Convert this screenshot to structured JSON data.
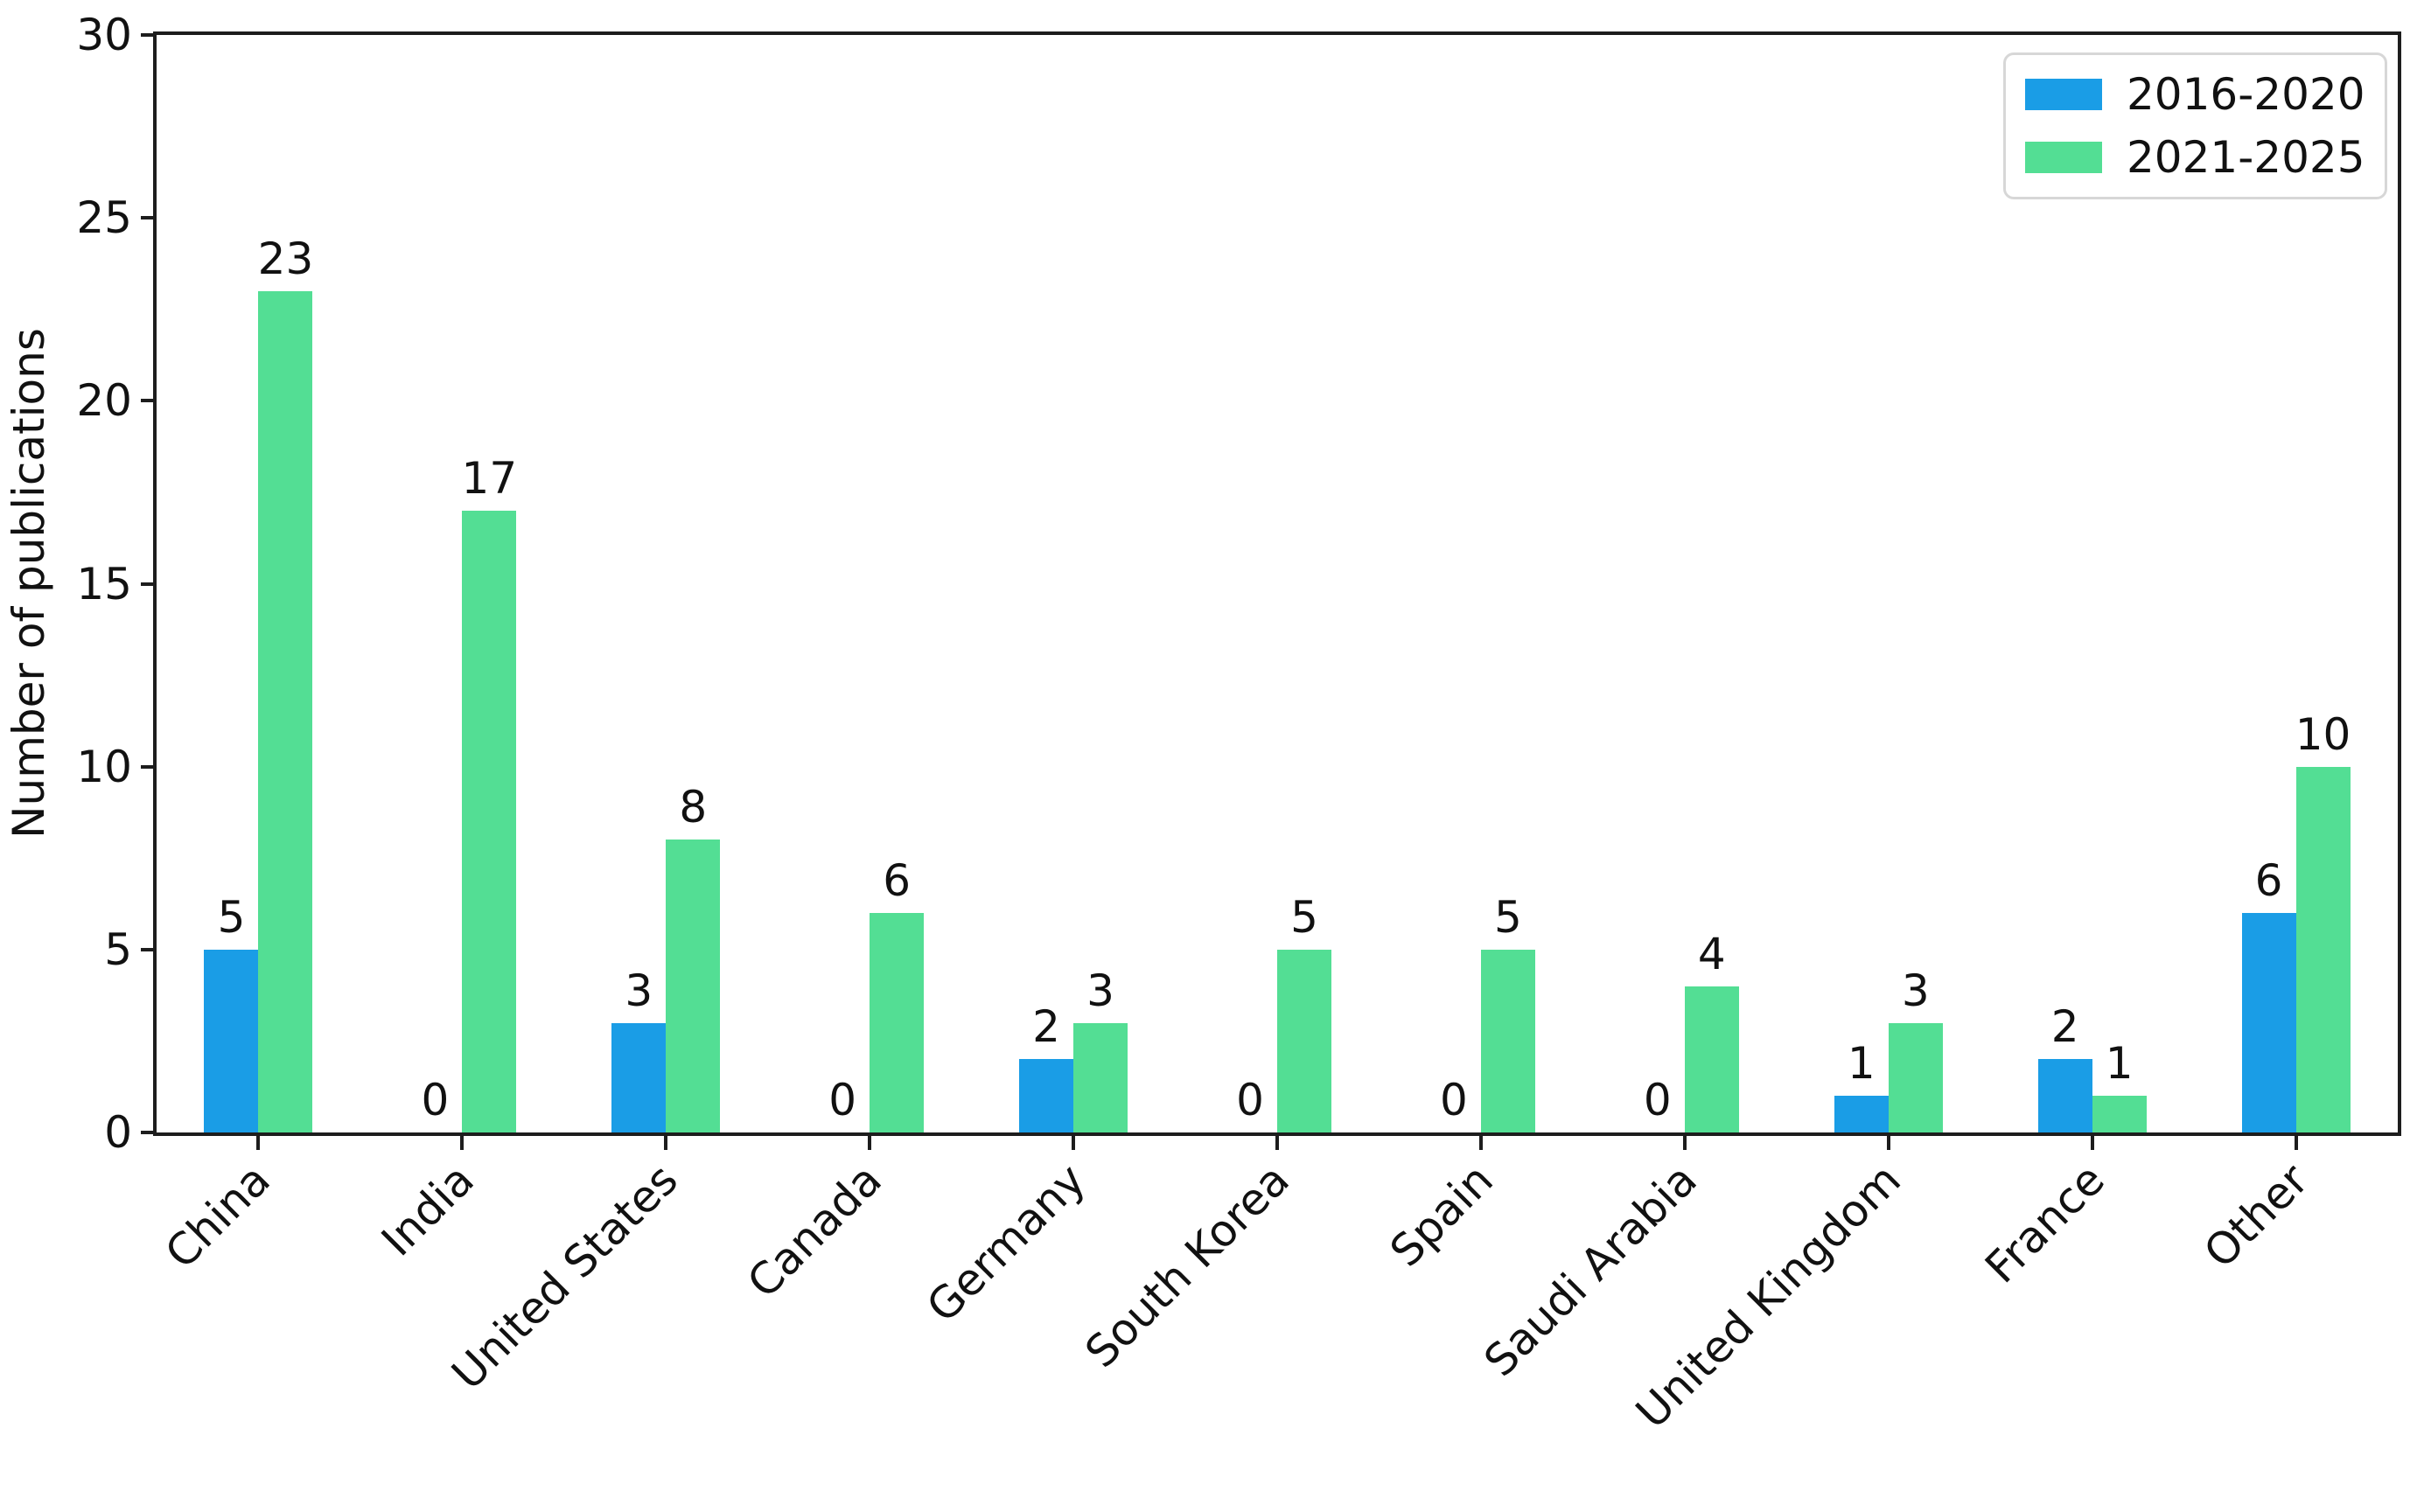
{
  "chart_data": {
    "type": "bar",
    "title": "",
    "xlabel": "",
    "ylabel": "Number of publications",
    "ylim": [
      0,
      30
    ],
    "yticks": [
      0,
      5,
      10,
      15,
      20,
      25,
      30
    ],
    "grid": false,
    "bar_value_labels": true,
    "legend_position": "upper right",
    "frame": "full-box",
    "categories": [
      "China",
      "India",
      "United States",
      "Canada",
      "Germany",
      "South Korea",
      "Spain",
      "Saudi Arabia",
      "United Kingdom",
      "France",
      "Other"
    ],
    "series": [
      {
        "name": "2016-2020",
        "color": "#1a9de6",
        "values": [
          5,
          0,
          3,
          0,
          2,
          0,
          0,
          0,
          1,
          2,
          6
        ]
      },
      {
        "name": "2021-2025",
        "color": "#53de94",
        "values": [
          23,
          17,
          8,
          6,
          3,
          5,
          5,
          4,
          3,
          1,
          10
        ]
      }
    ],
    "colors": {
      "spine": "#1d1d1d",
      "text": "#111111",
      "legend_border": "#d7d7d7",
      "background": "#ffffff"
    }
  }
}
